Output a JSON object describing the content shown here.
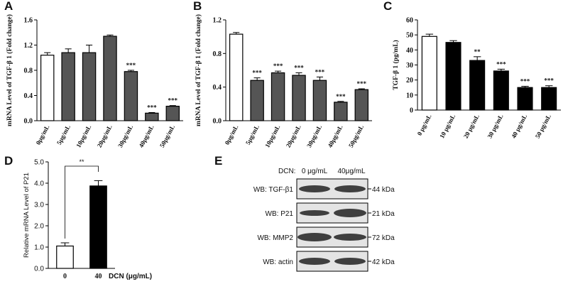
{
  "chart_data": [
    {
      "type": "bar",
      "label": "A",
      "ylabel": "mRNA Level of TGF-β 1 (Fold change)",
      "categories": [
        "0μg/mL",
        "5μg/mL",
        "10μg/mL",
        "20μg/mL",
        "30μg/mL",
        "40μg/mL",
        "50μg/mL"
      ],
      "values": [
        1.04,
        1.08,
        1.08,
        1.34,
        0.78,
        0.12,
        0.23
      ],
      "errors": [
        0.04,
        0.06,
        0.12,
        0.02,
        0.02,
        0.01,
        0.01
      ],
      "significance": [
        null,
        null,
        null,
        null,
        "***",
        "***",
        "***"
      ],
      "colors": [
        "#ffffff",
        "#555555",
        "#555555",
        "#555555",
        "#555555",
        "#555555",
        "#555555"
      ],
      "ylim": [
        0,
        1.6
      ],
      "yticks": [
        {
          "value": 0,
          "label": "0.0"
        },
        0.4,
        0.8,
        1.2,
        1.6
      ]
    },
    {
      "type": "bar",
      "label": "B",
      "ylabel": "mRNA Level of TGF-β 1 (Fold change)",
      "categories": [
        "0μg/mL",
        "5μg/mL",
        "10μg/mL",
        "20μg/mL",
        "30μg/mL",
        "40μg/mL",
        "50μg/mL"
      ],
      "values": [
        1.03,
        0.48,
        0.57,
        0.54,
        0.48,
        0.22,
        0.37
      ],
      "errors": [
        0.02,
        0.03,
        0.02,
        0.03,
        0.04,
        0.01,
        0.01
      ],
      "significance": [
        null,
        "***",
        "***",
        "***",
        "***",
        "***",
        "***"
      ],
      "colors": [
        "#ffffff",
        "#555555",
        "#555555",
        "#555555",
        "#555555",
        "#555555",
        "#555555"
      ],
      "ylim": [
        0,
        1.2
      ],
      "yticks": [
        {
          "value": 0,
          "label": "0.0"
        },
        0.4,
        0.8,
        1.2
      ]
    },
    {
      "type": "bar",
      "label": "C",
      "ylabel": "TGF-β 1 (pg/mL)",
      "categories": [
        "0 μg/mL",
        "10 μg/mL",
        "20 μg/mL",
        "30 μg/mL",
        "40 μg/mL",
        "50 μg/mL"
      ],
      "values": [
        49,
        45,
        33,
        26,
        15,
        15
      ],
      "errors": [
        1.5,
        1.2,
        2.5,
        1.2,
        0.8,
        1.2
      ],
      "significance": [
        null,
        null,
        "**",
        "***",
        "***",
        "***"
      ],
      "colors": [
        "#ffffff",
        "#000000",
        "#000000",
        "#000000",
        "#000000",
        "#000000"
      ],
      "ylim": [
        0,
        60
      ],
      "yticks": [
        0,
        10,
        20,
        30,
        40,
        50,
        60
      ]
    },
    {
      "type": "bar",
      "label": "D",
      "ylabel": "Relative mRNA Level of P21",
      "xlabel": "DCN (μg/mL)",
      "categories": [
        "0",
        "40"
      ],
      "values": [
        1.05,
        3.87
      ],
      "errors": [
        0.15,
        0.25
      ],
      "bracket": "**",
      "colors": [
        "#ffffff",
        "#000000"
      ],
      "ylim": [
        0,
        5
      ],
      "yticks": [
        {
          "value": 0,
          "label": "0.0"
        },
        {
          "value": 1,
          "label": "1.0"
        },
        {
          "value": 2,
          "label": "2.0"
        },
        {
          "value": 3,
          "label": "3.0"
        },
        {
          "value": 4,
          "label": "4.0"
        },
        {
          "value": 5,
          "label": "5.0"
        }
      ]
    },
    {
      "type": "blot",
      "label": "E",
      "header": "DCN:",
      "columns": [
        "0 μg/mL",
        "40μg/mL"
      ],
      "rows": [
        {
          "name": "WB: TGF-β1",
          "size": "44 kDa"
        },
        {
          "name": "WB: P21",
          "size": "21 kDa"
        },
        {
          "name": "WB: MMP2",
          "size": "72 kDa"
        },
        {
          "name": "WB: actin",
          "size": "42 kDa"
        }
      ]
    }
  ]
}
